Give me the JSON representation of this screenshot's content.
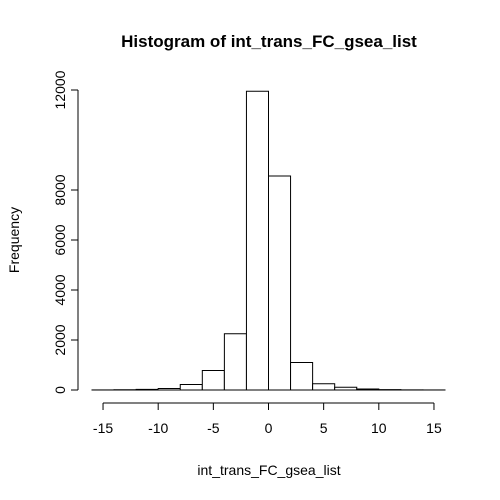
{
  "chart_data": {
    "type": "bar",
    "title": "Histogram of int_trans_FC_gsea_list",
    "xlabel": "int_trans_FC_gsea_list",
    "ylabel": "Frequency",
    "bin_edges": [
      -16,
      -14,
      -12,
      -10,
      -8,
      -6,
      -4,
      -2,
      0,
      2,
      4,
      6,
      8,
      10,
      12,
      14,
      16
    ],
    "values": [
      3,
      10,
      25,
      60,
      220,
      780,
      2250,
      11950,
      8560,
      1100,
      250,
      110,
      40,
      15,
      5,
      2
    ],
    "x_ticks": [
      -15,
      -10,
      -5,
      0,
      5,
      10,
      15
    ],
    "x_tick_labels": [
      "-15",
      "-10",
      "-5",
      "0",
      "5",
      "10",
      "15"
    ],
    "y_ticks": [
      0,
      2000,
      4000,
      6000,
      8000,
      12000
    ],
    "y_tick_labels": [
      "0",
      "2000",
      "4000",
      "6000",
      "8000",
      "12000"
    ],
    "xlim": [
      -16,
      16
    ],
    "ylim": [
      0,
      12000
    ],
    "grid": false
  }
}
